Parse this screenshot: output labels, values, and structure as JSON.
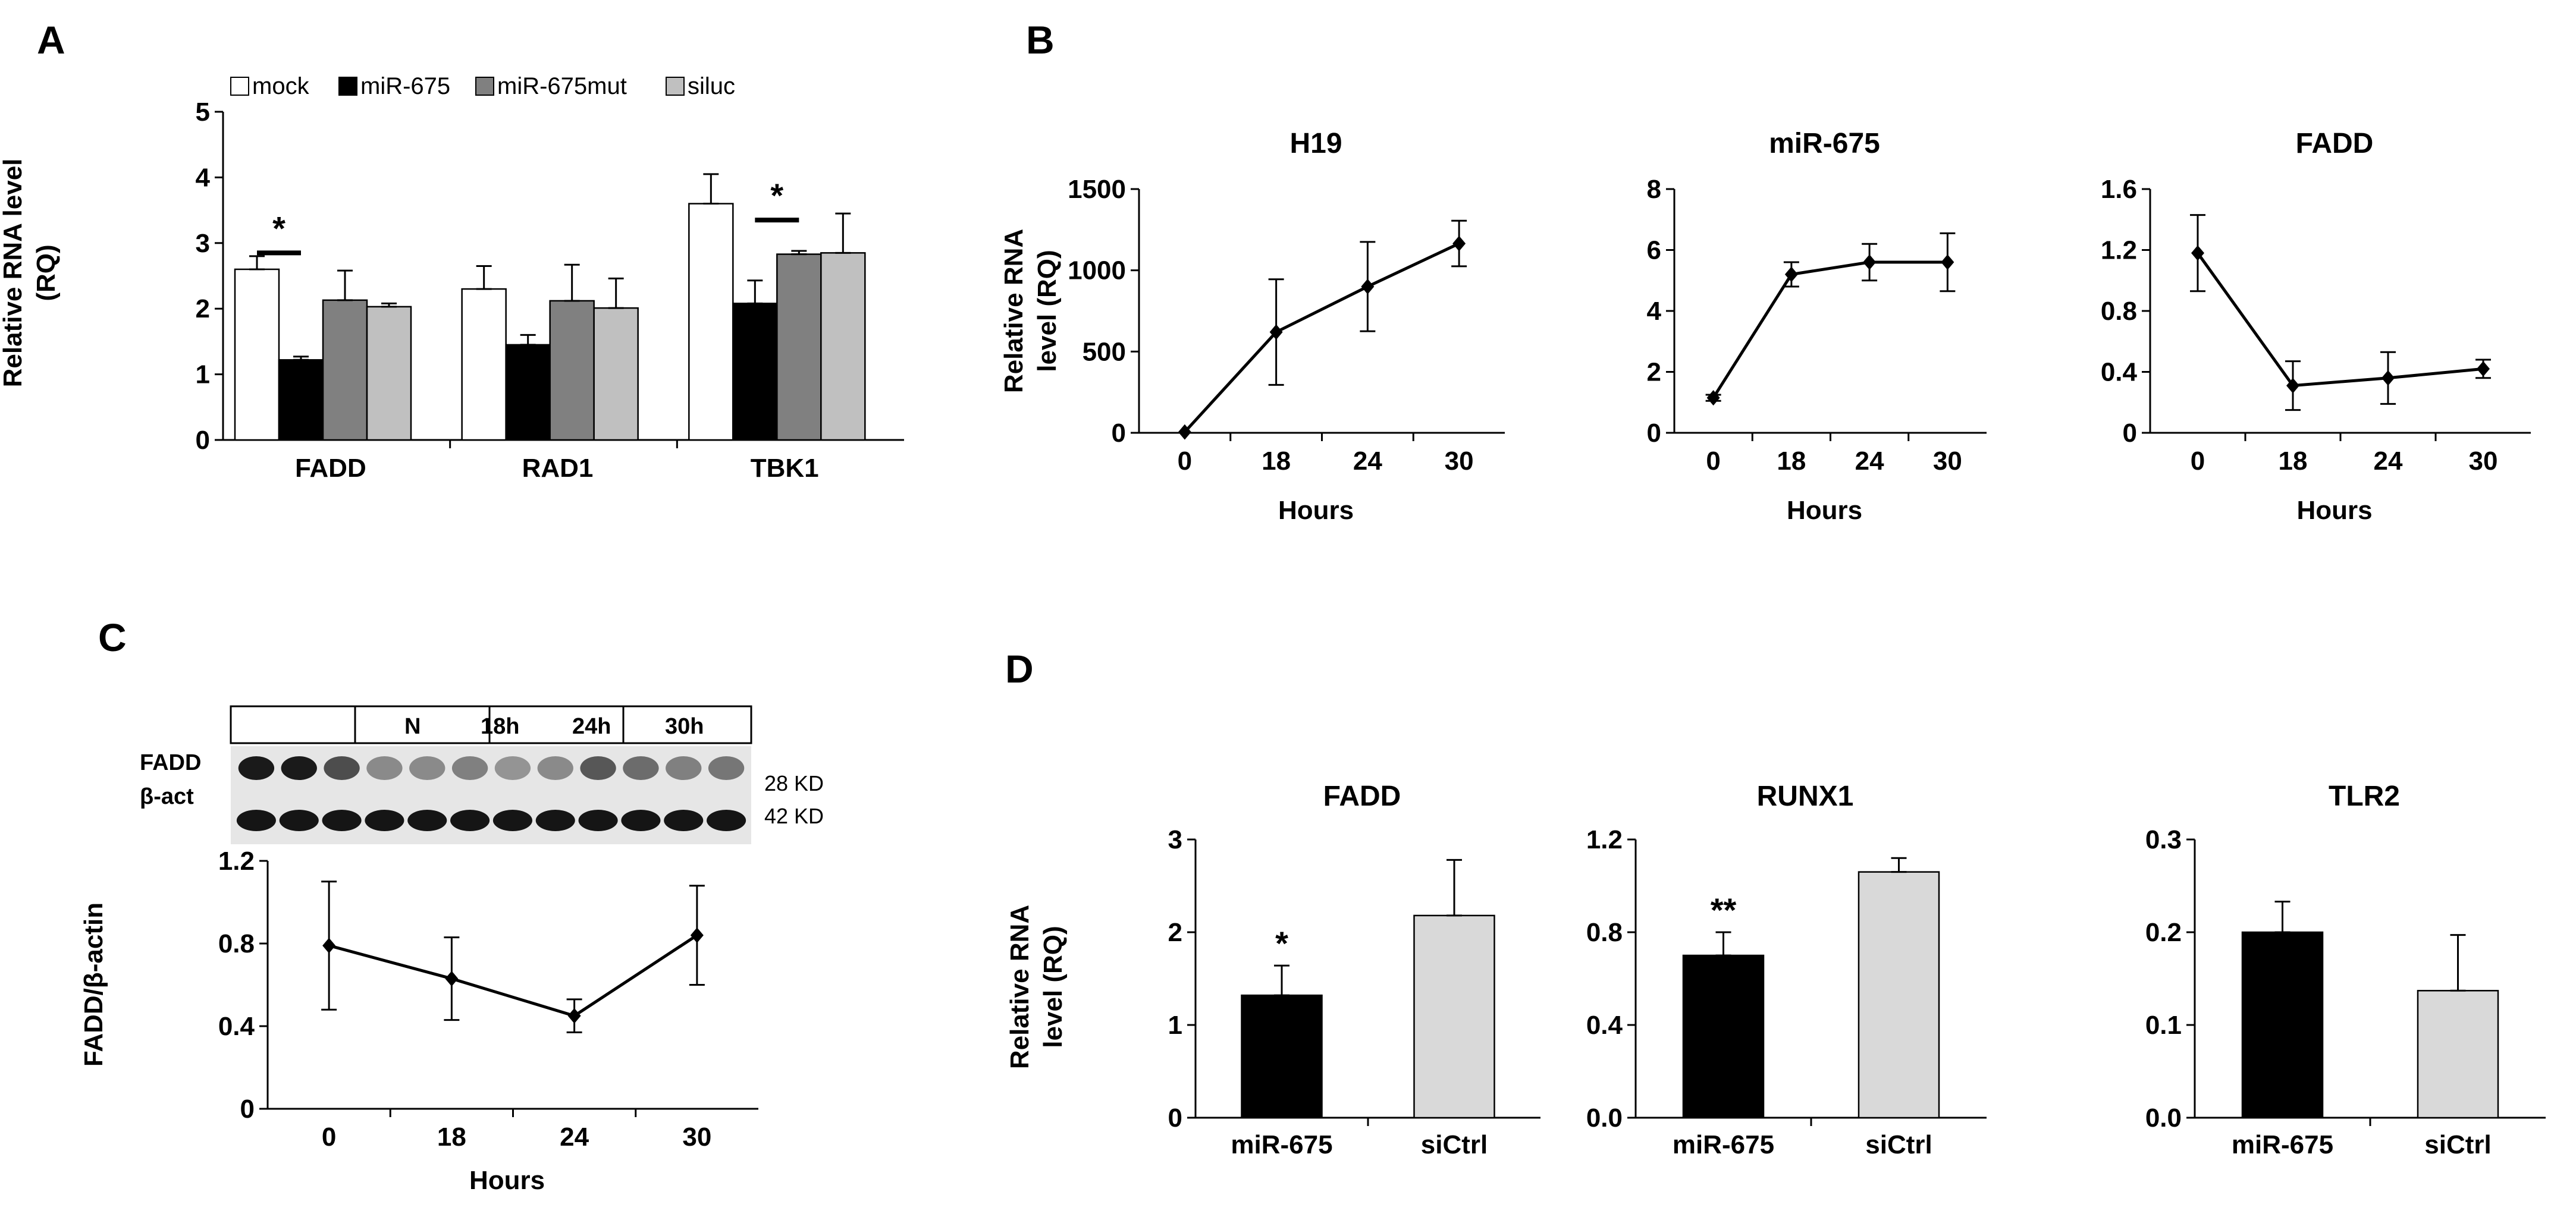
{
  "panels": {
    "A": "A",
    "B": "B",
    "C": "C",
    "D": "D"
  },
  "colors": {
    "mock": "#ffffff",
    "miR-675": "#000000",
    "miR-675mut": "#808080",
    "siluc": "#c0c0c0",
    "siCtrl": "#d9d9d9"
  },
  "chart_data": [
    {
      "id": "A",
      "type": "bar",
      "title": "",
      "ylabel": "Relative RNA level (RQ)",
      "ylabel_lines": [
        "Relative RNA level",
        "(RQ)"
      ],
      "ylim": [
        0,
        5
      ],
      "yticks": [
        "0",
        "1",
        "2",
        "3",
        "4",
        "5"
      ],
      "categories": [
        "FADD",
        "RAD1",
        "TBK1"
      ],
      "series": [
        {
          "name": "mock",
          "values": [
            2.6,
            2.3,
            3.6
          ],
          "errors": [
            0.2,
            0.35,
            0.45
          ]
        },
        {
          "name": "miR-675",
          "values": [
            1.22,
            1.45,
            2.08
          ],
          "errors": [
            0.05,
            0.15,
            0.35
          ]
        },
        {
          "name": "miR-675mut",
          "values": [
            2.13,
            2.12,
            2.83
          ],
          "errors": [
            0.45,
            0.55,
            0.05
          ]
        },
        {
          "name": "siluc",
          "values": [
            2.03,
            2.01,
            2.85
          ],
          "errors": [
            0.05,
            0.45,
            0.6
          ]
        }
      ],
      "legend": [
        "mock",
        "miR-675",
        "miR-675mut",
        "siluc"
      ],
      "annotations": [
        "*",
        "*"
      ]
    },
    {
      "id": "B1",
      "type": "line",
      "title": "H19",
      "xlabel": "Hours",
      "ylabel": "Relative RNA level (RQ)",
      "ylabel_lines": [
        "Relative RNA",
        "level (RQ)"
      ],
      "x": [
        "0",
        "18",
        "24",
        "30"
      ],
      "y": [
        5,
        620,
        900,
        1165
      ],
      "errors": [
        0,
        325,
        275,
        140
      ],
      "ylim": [
        0,
        1500
      ],
      "yticks": [
        "0",
        "500",
        "1000",
        "1500"
      ]
    },
    {
      "id": "B2",
      "type": "line",
      "title": "miR-675",
      "xlabel": "Hours",
      "x": [
        "0",
        "18",
        "24",
        "30"
      ],
      "y": [
        1.15,
        5.2,
        5.6,
        5.6
      ],
      "errors": [
        0.1,
        0.4,
        0.6,
        0.95
      ],
      "ylim": [
        0,
        8
      ],
      "yticks": [
        "0",
        "2",
        "4",
        "6",
        "8"
      ]
    },
    {
      "id": "B3",
      "type": "line",
      "title": "FADD",
      "xlabel": "Hours",
      "x": [
        "0",
        "18",
        "24",
        "30"
      ],
      "y": [
        1.18,
        0.31,
        0.36,
        0.42
      ],
      "errors": [
        0.25,
        0.16,
        0.17,
        0.06
      ],
      "ylim": [
        0,
        1.6
      ],
      "yticks": [
        "0",
        "0.4",
        "0.8",
        "1.2",
        "1.6"
      ]
    },
    {
      "id": "C",
      "type": "line",
      "title": "",
      "xlabel": "Hours",
      "ylabel": "FADD/β-actin",
      "x": [
        "0",
        "18",
        "24",
        "30"
      ],
      "y": [
        0.79,
        0.63,
        0.45,
        0.84
      ],
      "errors": [
        0.31,
        0.2,
        0.08,
        0.24
      ],
      "ylim": [
        0,
        1.2
      ],
      "yticks": [
        "0",
        "0.4",
        "0.8",
        "1.2"
      ]
    },
    {
      "id": "D1",
      "type": "bar",
      "title": "FADD",
      "ylabel": "Relative RNA level (RQ)",
      "ylabel_lines": [
        "Relative RNA",
        "level (RQ)"
      ],
      "categories": [
        "miR-675",
        "siCtrl"
      ],
      "values": [
        1.32,
        2.18
      ],
      "errors": [
        0.32,
        0.6
      ],
      "ylim": [
        0,
        3
      ],
      "yticks": [
        "0",
        "1",
        "2",
        "3"
      ],
      "annotations": [
        "*",
        ""
      ]
    },
    {
      "id": "D2",
      "type": "bar",
      "title": "RUNX1",
      "categories": [
        "miR-675",
        "siCtrl"
      ],
      "values": [
        0.7,
        1.06
      ],
      "errors": [
        0.1,
        0.06
      ],
      "ylim": [
        0,
        1.2
      ],
      "yticks": [
        "0.0",
        "0.4",
        "0.8",
        "1.2"
      ],
      "annotations": [
        "**",
        ""
      ]
    },
    {
      "id": "D3",
      "type": "bar",
      "title": "TLR2",
      "categories": [
        "miR-675",
        "siCtrl"
      ],
      "values": [
        0.2,
        0.137
      ],
      "errors": [
        0.033,
        0.06
      ],
      "ylim": [
        0,
        0.3
      ],
      "yticks": [
        "0.0",
        "0.1",
        "0.2",
        "0.3"
      ]
    }
  ],
  "blot": {
    "header_cells": [
      "",
      "N",
      "18h",
      "24h",
      "30h"
    ],
    "row_labels": [
      "FADD",
      "β-act"
    ],
    "markers": [
      "28 KD",
      "42 KD"
    ]
  }
}
